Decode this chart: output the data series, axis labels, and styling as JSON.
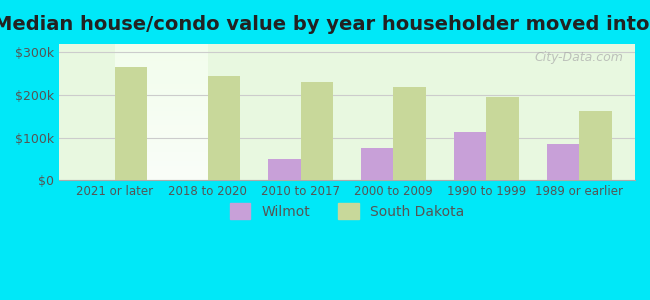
{
  "title": "Median house/condo value by year householder moved into unit",
  "categories": [
    "2021 or later",
    "2018 to 2020",
    "2010 to 2017",
    "2000 to 2009",
    "1990 to 1999",
    "1989 or earlier"
  ],
  "wilmot_values": [
    null,
    null,
    50000,
    75000,
    112000,
    85000
  ],
  "south_dakota_values": [
    265000,
    245000,
    230000,
    218000,
    196000,
    163000
  ],
  "wilmot_color": "#c8a0d8",
  "south_dakota_color": "#c8d89a",
  "background_color": "#00e8f8",
  "plot_bg_start": "#e8f8e0",
  "plot_bg_end": "#f8f8f8",
  "yticks": [
    0,
    100000,
    200000,
    300000
  ],
  "ytick_labels": [
    "$0",
    "$100k",
    "$200k",
    "$300k"
  ],
  "ylim": [
    0,
    320000
  ],
  "watermark": "City-Data.com",
  "legend_wilmot": "Wilmot",
  "legend_south_dakota": "South Dakota",
  "bar_width": 0.35,
  "title_fontsize": 14
}
